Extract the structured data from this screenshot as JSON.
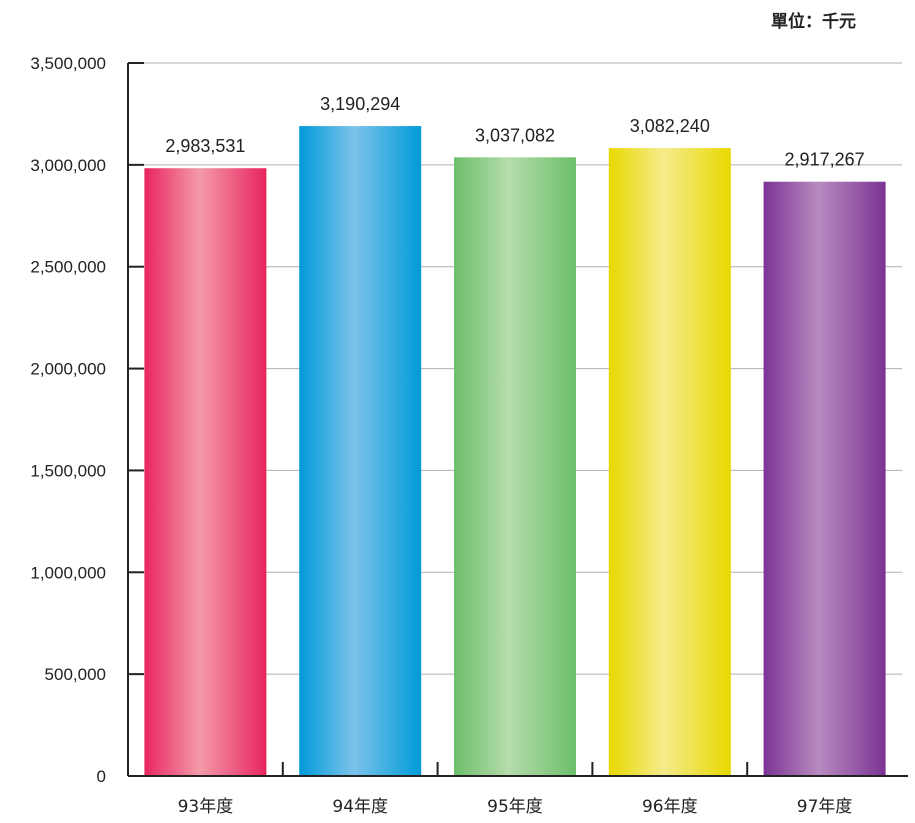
{
  "unit_label": "單位：千元",
  "chart_data": {
    "type": "bar",
    "title": "",
    "xlabel": "",
    "ylabel": "",
    "unit": "單位：千元",
    "categories": [
      "93年度",
      "94年度",
      "95年度",
      "96年度",
      "97年度"
    ],
    "values": [
      2983531,
      3190294,
      3037082,
      3082240,
      2917267
    ],
    "value_labels": [
      "2,983,531",
      "3,190,294",
      "3,037,082",
      "3,082,240",
      "2,917,267"
    ],
    "ylim": [
      0,
      3500000
    ],
    "yticks": [
      0,
      500000,
      1000000,
      1500000,
      2000000,
      2500000,
      3000000,
      3500000
    ],
    "ytick_labels": [
      "0",
      "500,000",
      "1,000,000",
      "1,500,000",
      "2,000,000",
      "2,500,000",
      "3,000,000",
      "3,500,000"
    ],
    "grid": true,
    "legend": false,
    "bar_colors": [
      {
        "base": "#e8255e",
        "light": "#f49aaa"
      },
      {
        "base": "#009ad8",
        "light": "#7cc3ea"
      },
      {
        "base": "#6cbf6a",
        "light": "#b6dcac"
      },
      {
        "base": "#e8d800",
        "light": "#f5eb8c"
      },
      {
        "base": "#7b3394",
        "light": "#b88bc0"
      }
    ],
    "grid_color": "#b0b0b0",
    "axis_color": "#222222"
  }
}
